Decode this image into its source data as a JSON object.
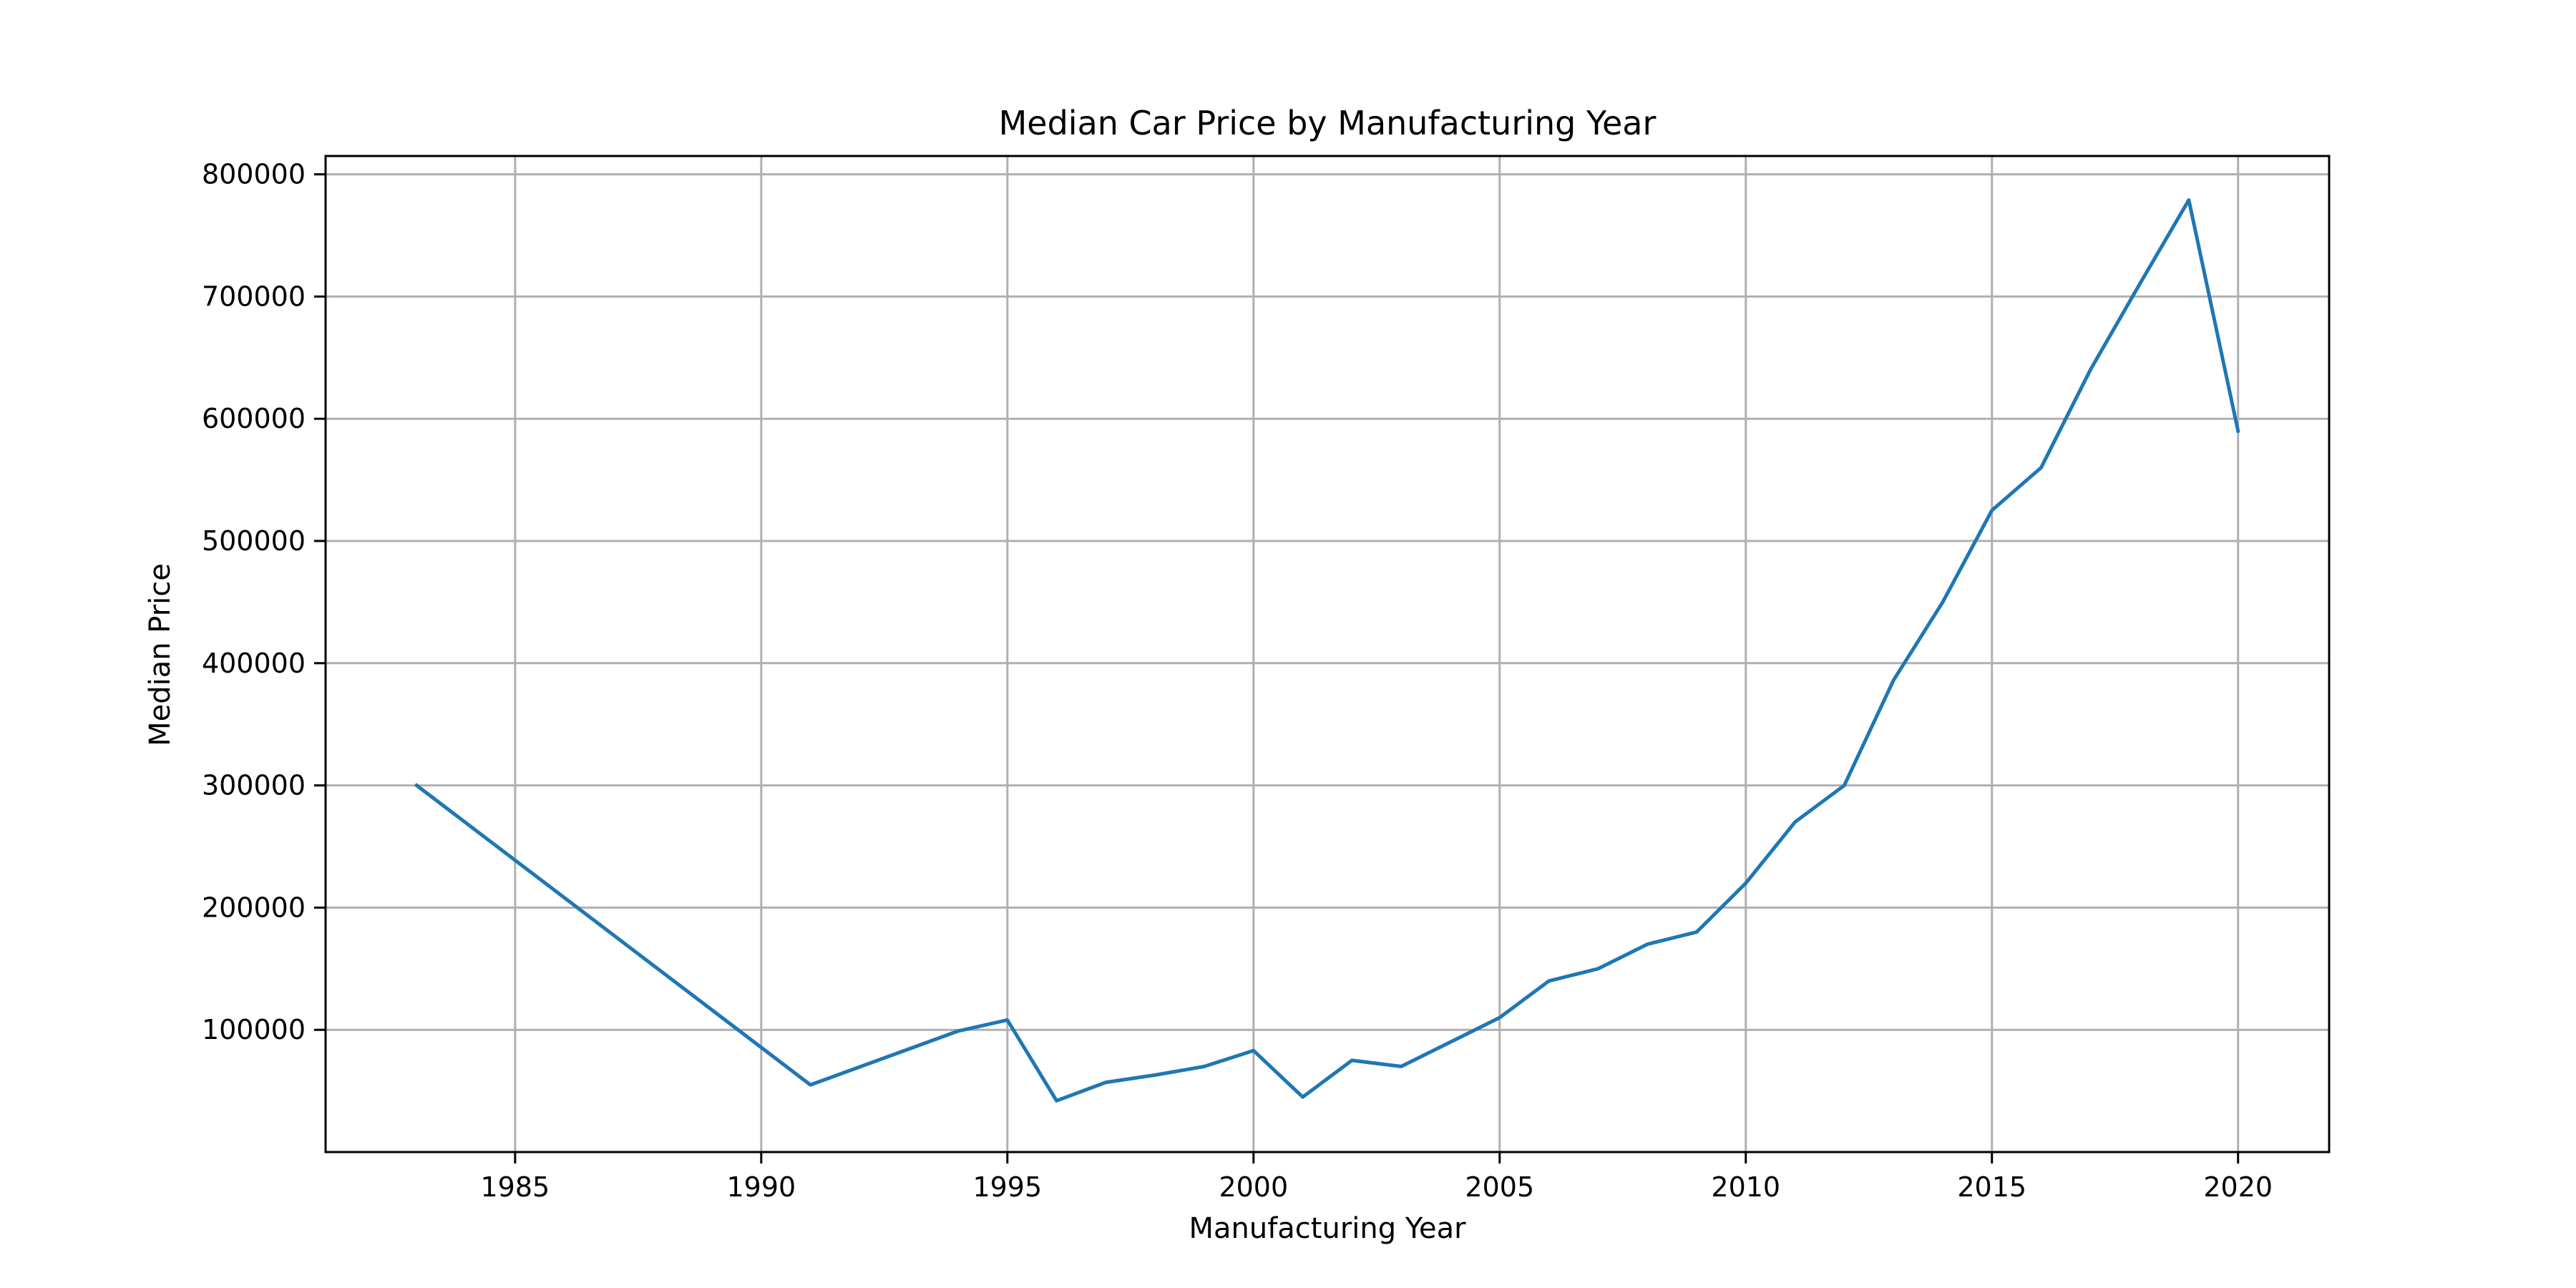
{
  "chart_data": {
    "type": "line",
    "title": "Median Car Price by Manufacturing Year",
    "xlabel": "Manufacturing Year",
    "ylabel": "Median Price",
    "xlim": [
      1981.15,
      2021.85
    ],
    "ylim": [
      0,
      815000
    ],
    "xticks": [
      1985,
      1990,
      1995,
      2000,
      2005,
      2010,
      2015,
      2020
    ],
    "yticks": [
      100000,
      200000,
      300000,
      400000,
      500000,
      600000,
      700000,
      800000
    ],
    "grid": true,
    "series": [
      {
        "color": "#1f77b4",
        "x": [
          1983,
          1991,
          1994,
          1995,
          1996,
          1997,
          1998,
          1999,
          2000,
          2001,
          2002,
          2003,
          2004,
          2005,
          2006,
          2007,
          2008,
          2009,
          2010,
          2011,
          2012,
          2013,
          2014,
          2015,
          2016,
          2017,
          2018,
          2019,
          2020
        ],
        "y": [
          300000,
          55000,
          99000,
          108000,
          42000,
          57000,
          63000,
          70000,
          83000,
          45000,
          75000,
          70000,
          90000,
          110000,
          140000,
          150000,
          170000,
          180000,
          220000,
          270000,
          300000,
          386000,
          450000,
          525000,
          560000,
          640000,
          710000,
          779000,
          590000
        ]
      }
    ]
  }
}
